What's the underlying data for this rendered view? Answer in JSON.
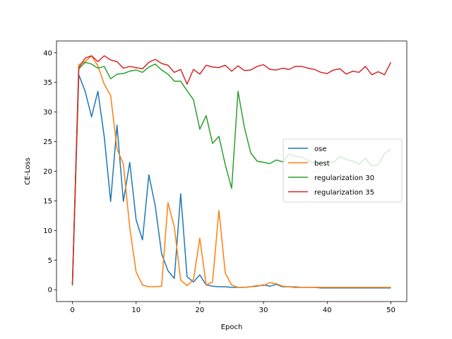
{
  "chart_data": {
    "type": "line",
    "xlabel": "Epoch",
    "ylabel": "CE-Loss",
    "xlim": [
      -2.5,
      52.5
    ],
    "ylim": [
      -2,
      42
    ],
    "xticks": [
      0,
      10,
      20,
      30,
      40,
      50
    ],
    "yticks": [
      0,
      5,
      10,
      15,
      20,
      25,
      30,
      35,
      40
    ],
    "grid": false,
    "legend_position": "center-right",
    "series": [
      {
        "name": "ose",
        "color": "#1f77b4",
        "x": [
          0,
          1,
          2,
          3,
          4,
          5,
          6,
          7,
          8,
          9,
          10,
          11,
          12,
          13,
          14,
          15,
          16,
          17,
          18,
          19,
          20,
          21,
          22,
          23,
          24,
          25,
          26,
          27,
          28,
          29,
          30,
          31,
          32,
          33,
          34,
          35,
          36,
          37,
          38,
          39,
          40,
          41,
          42,
          43,
          44,
          45,
          46,
          47,
          48,
          49,
          50
        ],
        "values": [
          0.8,
          36.3,
          33.5,
          29.2,
          33.5,
          25.8,
          14.9,
          27.8,
          14.9,
          21.5,
          11.8,
          8.4,
          19.4,
          14.2,
          6.1,
          3.2,
          1.9,
          16.2,
          2.2,
          1.3,
          2.5,
          0.8,
          0.6,
          0.5,
          0.5,
          0.4,
          0.4,
          0.4,
          0.5,
          0.6,
          0.8,
          0.6,
          0.9,
          0.5,
          0.5,
          0.4,
          0.4,
          0.4,
          0.4,
          0.3,
          0.3,
          0.3,
          0.3,
          0.3,
          0.3,
          0.3,
          0.3,
          0.3,
          0.3,
          0.3,
          0.3
        ]
      },
      {
        "name": "best",
        "color": "#ff7f0e",
        "x": [
          0,
          1,
          2,
          3,
          4,
          5,
          6,
          7,
          8,
          9,
          10,
          11,
          12,
          13,
          14,
          15,
          16,
          17,
          18,
          19,
          20,
          21,
          22,
          23,
          24,
          25,
          26,
          27,
          28,
          29,
          30,
          31,
          32,
          33,
          34,
          35,
          36,
          37,
          38,
          39,
          40,
          41,
          42,
          43,
          44,
          45,
          46,
          47,
          48,
          49,
          50
        ],
        "values": [
          1.0,
          38.0,
          38.5,
          39.5,
          37.8,
          34.7,
          32.8,
          23.8,
          21.2,
          10.5,
          3.0,
          0.8,
          0.5,
          0.5,
          0.6,
          14.7,
          10.6,
          1.6,
          0.7,
          1.7,
          8.7,
          0.8,
          1.3,
          13.4,
          2.8,
          0.8,
          0.4,
          0.4,
          0.5,
          0.7,
          0.7,
          1.2,
          1.0,
          0.6,
          0.5,
          0.5,
          0.4,
          0.4,
          0.4,
          0.4,
          0.4,
          0.4,
          0.4,
          0.4,
          0.4,
          0.4,
          0.4,
          0.4,
          0.4,
          0.4,
          0.4
        ]
      },
      {
        "name": "regularization 30",
        "color": "#2ca02c",
        "x": [
          0,
          1,
          2,
          3,
          4,
          5,
          6,
          7,
          8,
          9,
          10,
          11,
          12,
          13,
          14,
          15,
          16,
          17,
          18,
          19,
          20,
          21,
          22,
          23,
          24,
          25,
          26,
          27,
          28,
          29,
          30,
          31,
          32,
          33,
          34,
          35,
          36,
          37,
          38,
          39,
          40,
          41,
          42,
          43,
          44,
          45,
          46,
          47,
          48,
          49,
          50
        ],
        "values": [
          0.7,
          37.3,
          38.4,
          38.1,
          37.4,
          37.7,
          35.6,
          36.4,
          36.5,
          36.9,
          37.1,
          36.7,
          37.6,
          38.1,
          37.1,
          36.4,
          35.2,
          35.2,
          33.6,
          32.1,
          27.1,
          29.4,
          24.7,
          25.9,
          21.1,
          17.1,
          33.5,
          27.4,
          23.1,
          21.7,
          21.5,
          21.3,
          21.9,
          21.6,
          22.9,
          22.5,
          22.4,
          21.8,
          21.4,
          21.4,
          21.6,
          21.5,
          22.5,
          22.0,
          21.7,
          21.2,
          22.2,
          20.9,
          21.1,
          23.0,
          23.7
        ]
      },
      {
        "name": "regularization 35",
        "color": "#d62728",
        "x": [
          0,
          1,
          2,
          3,
          4,
          5,
          6,
          7,
          8,
          9,
          10,
          11,
          12,
          13,
          14,
          15,
          16,
          17,
          18,
          19,
          20,
          21,
          22,
          23,
          24,
          25,
          26,
          27,
          28,
          29,
          30,
          31,
          32,
          33,
          34,
          35,
          36,
          37,
          38,
          39,
          40,
          41,
          42,
          43,
          44,
          45,
          46,
          47,
          48,
          49,
          50
        ],
        "values": [
          1.0,
          37.5,
          39.1,
          39.5,
          38.5,
          39.5,
          38.8,
          38.5,
          37.4,
          37.7,
          37.5,
          37.3,
          38.4,
          38.9,
          38.2,
          37.9,
          36.7,
          37.2,
          34.7,
          37.2,
          36.4,
          37.9,
          37.6,
          37.5,
          37.9,
          36.9,
          37.8,
          37.0,
          37.1,
          37.7,
          38.0,
          37.2,
          37.1,
          37.4,
          37.2,
          37.7,
          37.7,
          37.4,
          37.2,
          36.7,
          36.5,
          37.1,
          37.3,
          36.4,
          36.9,
          36.7,
          37.7,
          36.3,
          36.8,
          36.3,
          38.4
        ]
      }
    ]
  }
}
